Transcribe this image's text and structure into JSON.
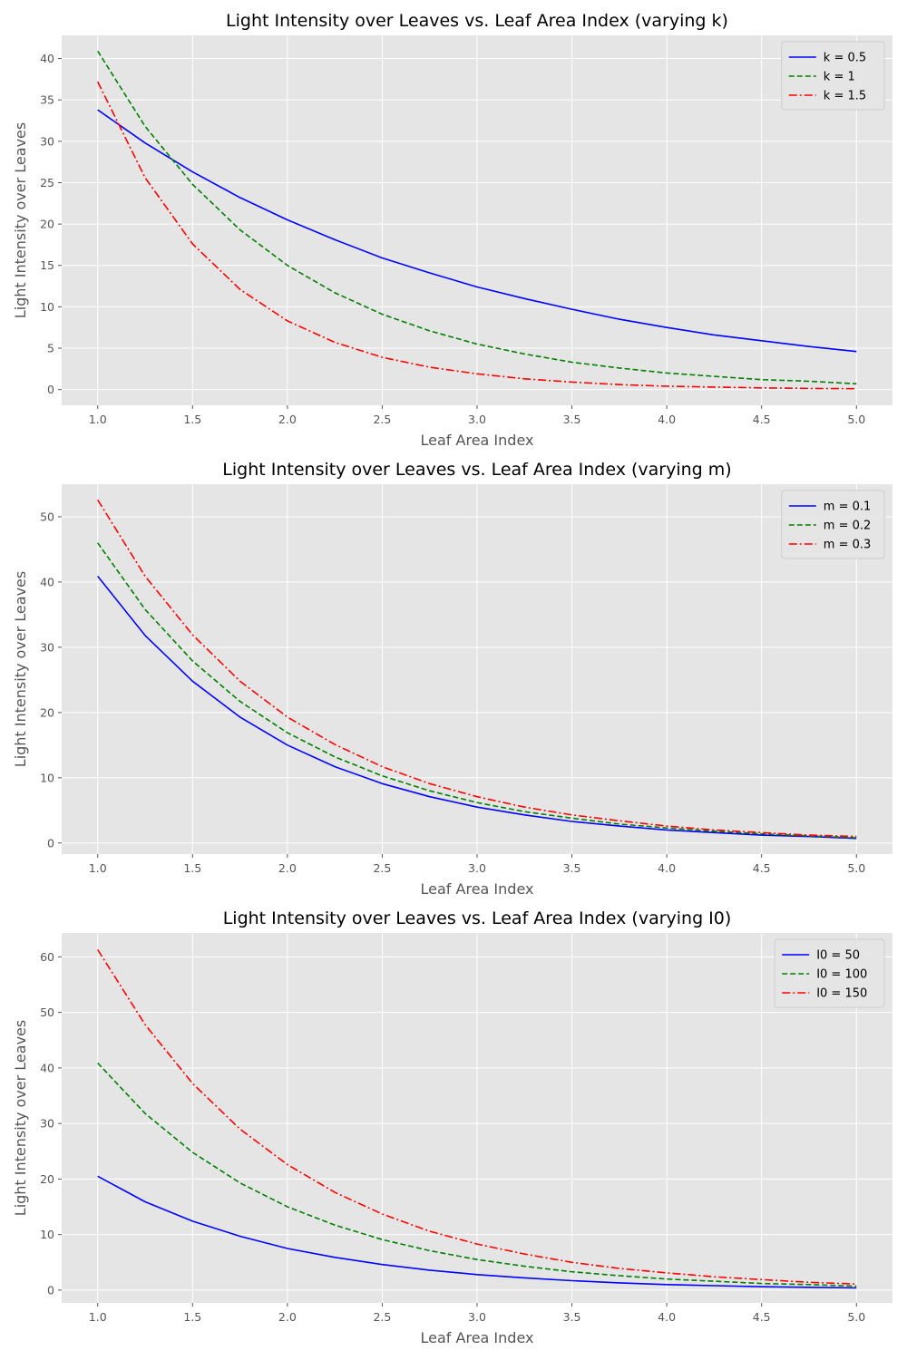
{
  "chart_data": [
    {
      "type": "line",
      "title": "Light Intensity over Leaves vs. Leaf Area Index (varying k)",
      "xlabel": "Leaf Area Index",
      "ylabel": "Light Intensity over Leaves",
      "xlim": [
        0.81,
        5.19
      ],
      "ylim": [
        -1.9,
        42.8
      ],
      "xticks": [
        "1.0",
        "1.5",
        "2.0",
        "2.5",
        "3.0",
        "3.5",
        "4.0",
        "4.5",
        "5.0"
      ],
      "yticks": [
        "0",
        "5",
        "10",
        "15",
        "20",
        "25",
        "30",
        "35",
        "40"
      ],
      "grid": true,
      "legend": "top-right",
      "series": [
        {
          "name": "k = 0.5",
          "color": "#0000ff",
          "style": "solid",
          "x": [
            1.0,
            1.25,
            1.5,
            1.75,
            2.0,
            2.25,
            2.5,
            2.75,
            3.0,
            3.25,
            3.5,
            3.75,
            4.0,
            4.25,
            4.5,
            4.75,
            5.0
          ],
          "y": [
            33.8,
            29.8,
            26.3,
            23.2,
            20.5,
            18.1,
            15.9,
            14.1,
            12.4,
            11.0,
            9.7,
            8.5,
            7.5,
            6.6,
            5.9,
            5.2,
            4.6
          ]
        },
        {
          "name": "k = 1",
          "color": "#008000",
          "style": "dashed",
          "x": [
            1.0,
            1.25,
            1.5,
            1.75,
            2.0,
            2.25,
            2.5,
            2.75,
            3.0,
            3.25,
            3.5,
            3.75,
            4.0,
            4.25,
            4.5,
            4.75,
            5.0
          ],
          "y": [
            40.9,
            31.8,
            24.8,
            19.3,
            15.0,
            11.7,
            9.1,
            7.1,
            5.5,
            4.3,
            3.3,
            2.6,
            2.0,
            1.6,
            1.2,
            1.0,
            0.7
          ]
        },
        {
          "name": "k = 1.5",
          "color": "#ff0000",
          "style": "dashdot",
          "x": [
            1.0,
            1.25,
            1.5,
            1.75,
            2.0,
            2.25,
            2.5,
            2.75,
            3.0,
            3.25,
            3.5,
            3.75,
            4.0,
            4.25,
            4.5,
            4.75,
            5.0
          ],
          "y": [
            37.2,
            25.6,
            17.6,
            12.1,
            8.3,
            5.7,
            3.9,
            2.7,
            1.9,
            1.3,
            0.9,
            0.6,
            0.4,
            0.3,
            0.2,
            0.14,
            0.1
          ]
        }
      ]
    },
    {
      "type": "line",
      "title": "Light Intensity over Leaves vs. Leaf Area Index (varying m)",
      "xlabel": "Leaf Area Index",
      "ylabel": "Light Intensity over Leaves",
      "xlim": [
        0.81,
        5.19
      ],
      "ylim": [
        -1.7,
        55.0
      ],
      "xticks": [
        "1.0",
        "1.5",
        "2.0",
        "2.5",
        "3.0",
        "3.5",
        "4.0",
        "4.5",
        "5.0"
      ],
      "yticks": [
        "0",
        "10",
        "20",
        "30",
        "40",
        "50"
      ],
      "grid": true,
      "legend": "top-right",
      "series": [
        {
          "name": "m = 0.1",
          "color": "#0000ff",
          "style": "solid",
          "x": [
            1.0,
            1.25,
            1.5,
            1.75,
            2.0,
            2.25,
            2.5,
            2.75,
            3.0,
            3.25,
            3.5,
            3.75,
            4.0,
            4.25,
            4.5,
            4.75,
            5.0
          ],
          "y": [
            40.9,
            31.8,
            24.8,
            19.3,
            15.0,
            11.7,
            9.1,
            7.1,
            5.5,
            4.3,
            3.3,
            2.6,
            2.0,
            1.6,
            1.2,
            1.0,
            0.7
          ]
        },
        {
          "name": "m = 0.2",
          "color": "#008000",
          "style": "dashed",
          "x": [
            1.0,
            1.25,
            1.5,
            1.75,
            2.0,
            2.25,
            2.5,
            2.75,
            3.0,
            3.25,
            3.5,
            3.75,
            4.0,
            4.25,
            4.5,
            4.75,
            5.0
          ],
          "y": [
            46.0,
            35.8,
            27.9,
            21.7,
            16.9,
            13.2,
            10.3,
            8.0,
            6.2,
            4.8,
            3.8,
            2.9,
            2.3,
            1.8,
            1.4,
            1.1,
            0.8
          ]
        },
        {
          "name": "m = 0.3",
          "color": "#ff0000",
          "style": "dashdot",
          "x": [
            1.0,
            1.25,
            1.5,
            1.75,
            2.0,
            2.25,
            2.5,
            2.75,
            3.0,
            3.25,
            3.5,
            3.75,
            4.0,
            4.25,
            4.5,
            4.75,
            5.0
          ],
          "y": [
            52.6,
            40.9,
            31.9,
            24.8,
            19.3,
            15.1,
            11.7,
            9.1,
            7.1,
            5.5,
            4.3,
            3.4,
            2.6,
            2.0,
            1.6,
            1.2,
            1.0
          ]
        }
      ]
    },
    {
      "type": "line",
      "title": "Light Intensity over Leaves vs. Leaf Area Index (varying I0)",
      "xlabel": "Leaf Area Index",
      "ylabel": "Light Intensity over Leaves",
      "xlim": [
        0.81,
        5.19
      ],
      "ylim": [
        -2.3,
        64.3
      ],
      "xticks": [
        "1.0",
        "1.5",
        "2.0",
        "2.5",
        "3.0",
        "3.5",
        "4.0",
        "4.5",
        "5.0"
      ],
      "yticks": [
        "0",
        "10",
        "20",
        "30",
        "40",
        "50",
        "60"
      ],
      "grid": true,
      "legend": "top-right",
      "series": [
        {
          "name": "I0 = 50",
          "color": "#0000ff",
          "style": "solid",
          "x": [
            1.0,
            1.25,
            1.5,
            1.75,
            2.0,
            2.25,
            2.5,
            2.75,
            3.0,
            3.25,
            3.5,
            3.75,
            4.0,
            4.25,
            4.5,
            4.75,
            5.0
          ],
          "y": [
            20.5,
            15.9,
            12.4,
            9.7,
            7.5,
            5.9,
            4.6,
            3.6,
            2.8,
            2.2,
            1.7,
            1.3,
            1.0,
            0.8,
            0.6,
            0.5,
            0.4
          ]
        },
        {
          "name": "I0 = 100",
          "color": "#008000",
          "style": "dashed",
          "x": [
            1.0,
            1.25,
            1.5,
            1.75,
            2.0,
            2.25,
            2.5,
            2.75,
            3.0,
            3.25,
            3.5,
            3.75,
            4.0,
            4.25,
            4.5,
            4.75,
            5.0
          ],
          "y": [
            40.9,
            31.8,
            24.8,
            19.3,
            15.0,
            11.7,
            9.1,
            7.1,
            5.5,
            4.3,
            3.3,
            2.6,
            2.0,
            1.6,
            1.2,
            1.0,
            0.7
          ]
        },
        {
          "name": "I0 = 150",
          "color": "#ff0000",
          "style": "dashdot",
          "x": [
            1.0,
            1.25,
            1.5,
            1.75,
            2.0,
            2.25,
            2.5,
            2.75,
            3.0,
            3.25,
            3.5,
            3.75,
            4.0,
            4.25,
            4.5,
            4.75,
            5.0
          ],
          "y": [
            61.3,
            47.8,
            37.2,
            29.0,
            22.6,
            17.6,
            13.7,
            10.6,
            8.3,
            6.5,
            5.0,
            3.9,
            3.1,
            2.4,
            1.9,
            1.4,
            1.1
          ]
        }
      ]
    }
  ]
}
